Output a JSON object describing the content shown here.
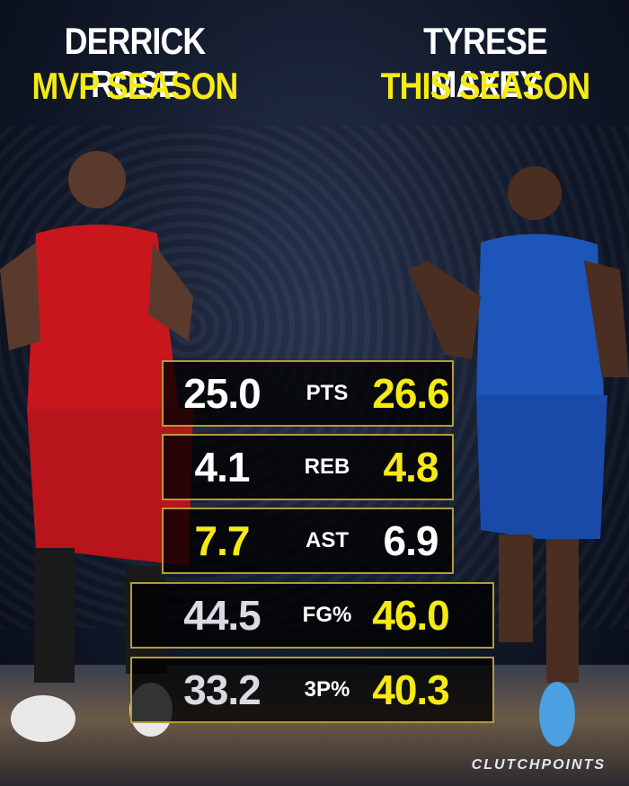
{
  "header": {
    "left": {
      "name": "DERRICK ROSE",
      "subtitle": "MVP SEASON"
    },
    "right": {
      "name": "TYRESE MAXEY",
      "subtitle": "THIS SEASON"
    }
  },
  "table": {
    "rows": [
      {
        "stat": "PTS",
        "left": "25.0",
        "right": "26.6",
        "highlight": "right"
      },
      {
        "stat": "REB",
        "left": "4.1",
        "right": "4.8",
        "highlight": "right"
      },
      {
        "stat": "AST",
        "left": "7.7",
        "right": "6.9",
        "highlight": "left"
      },
      {
        "stat": "FG%",
        "left": "44.5",
        "right": "46.0",
        "highlight": "right"
      },
      {
        "stat": "3P%",
        "left": "33.2",
        "right": "40.3",
        "highlight": "right"
      }
    ]
  },
  "footer": {
    "brand": "CLUTCHPOINTS"
  }
}
